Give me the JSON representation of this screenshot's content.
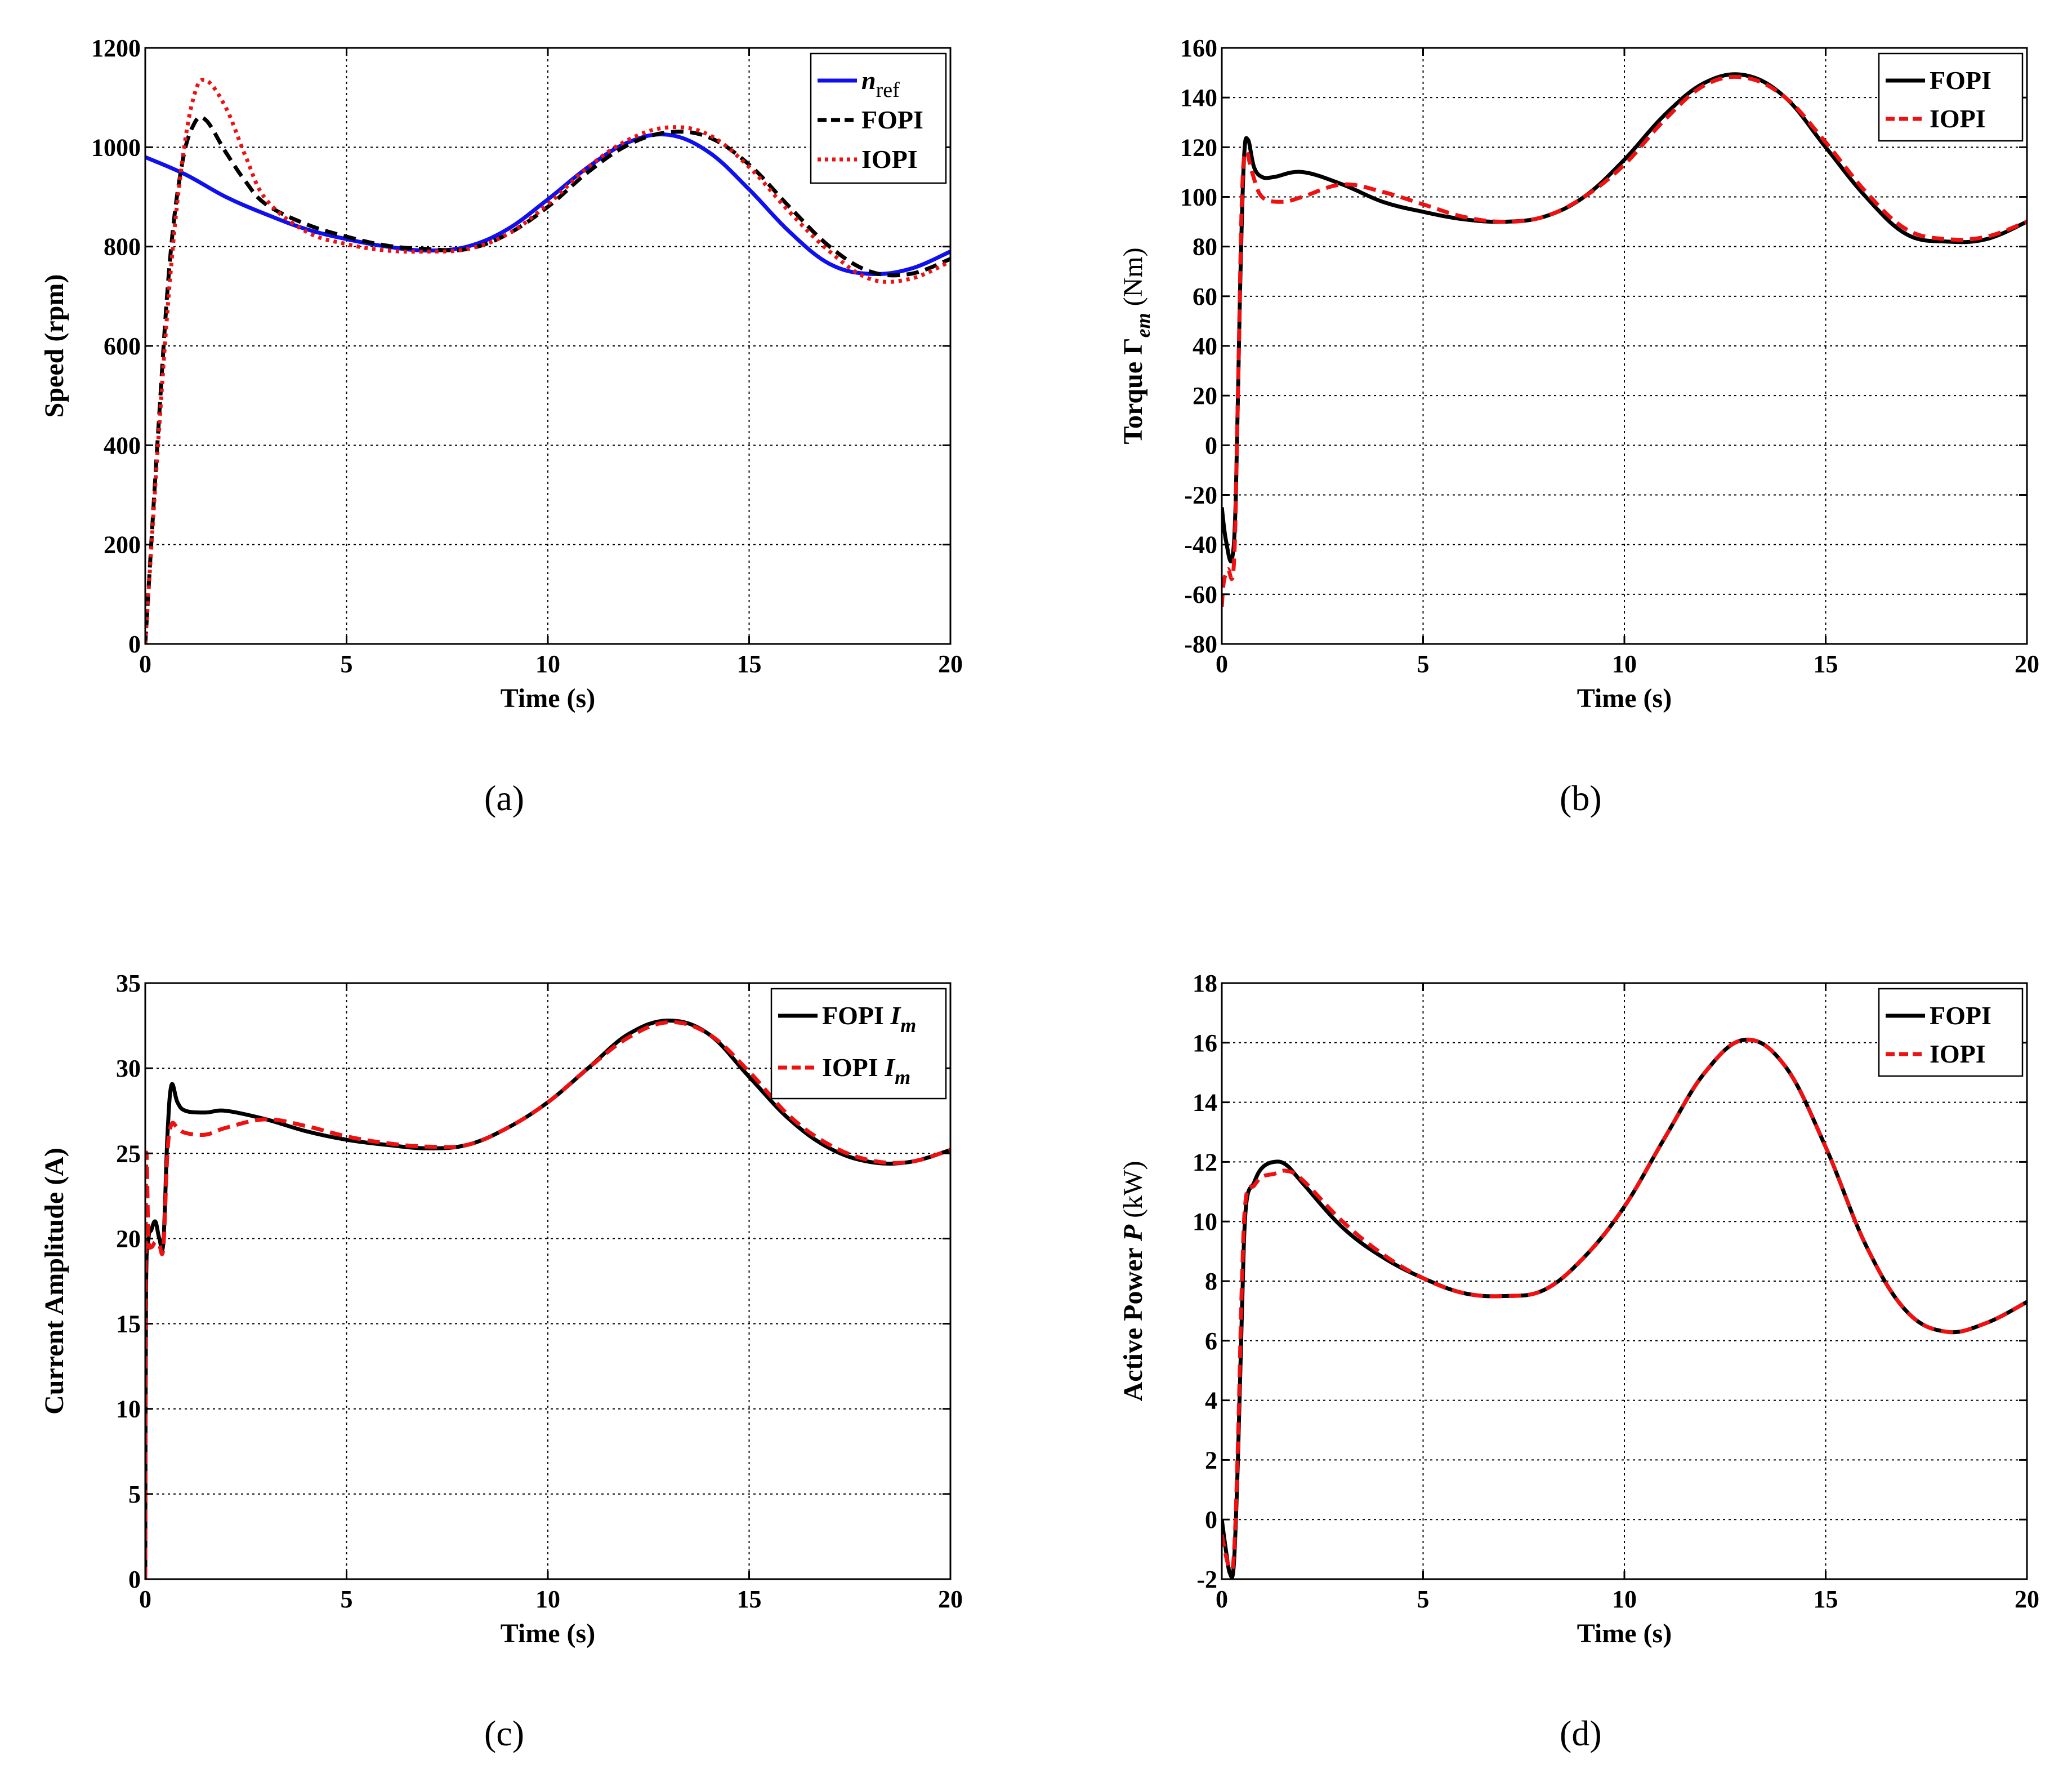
{
  "captions": {
    "a": "(a)",
    "b": "(b)",
    "c": "(c)",
    "d": "(d)"
  },
  "colors": {
    "nref": "#1010ee",
    "fopi": "#000000",
    "iopi": "#ee1111"
  },
  "chart_data": [
    {
      "id": "a",
      "type": "line",
      "title": "",
      "xlabel": "Time (s)",
      "ylabel": "Speed  (rpm)",
      "xlim": [
        0,
        20
      ],
      "ylim": [
        0,
        1200
      ],
      "xticks": [
        0,
        5,
        10,
        15,
        20
      ],
      "yticks": [
        0,
        200,
        400,
        600,
        800,
        1000,
        1200
      ],
      "grid": true,
      "legend_position": "top-right",
      "series": [
        {
          "name": "n_ref",
          "legend_main": "n",
          "legend_sub": "ref",
          "style": "solid",
          "color": "#1010ee",
          "x": [
            0,
            1,
            2,
            3,
            4,
            5,
            6,
            7,
            8,
            9,
            10,
            11,
            12,
            13,
            14,
            15,
            16,
            17,
            18,
            19,
            20
          ],
          "y": [
            980,
            945,
            900,
            865,
            835,
            815,
            800,
            792,
            800,
            835,
            895,
            960,
            1010,
            1025,
            990,
            915,
            830,
            765,
            745,
            755,
            790
          ]
        },
        {
          "name": "FOPI",
          "legend_main": "FOPI",
          "style": "dashed",
          "color": "#000000",
          "x": [
            0,
            0.3,
            0.6,
            0.9,
            1.2,
            1.5,
            2,
            2.5,
            3,
            4,
            5,
            6,
            7,
            8,
            9,
            10,
            11,
            12,
            13,
            14,
            15,
            16,
            17,
            18,
            19,
            20
          ],
          "y": [
            0,
            400,
            760,
            960,
            1045,
            1055,
            990,
            930,
            885,
            845,
            820,
            802,
            795,
            795,
            825,
            880,
            950,
            1005,
            1030,
            1020,
            965,
            880,
            800,
            750,
            745,
            775
          ]
        },
        {
          "name": "IOPI",
          "legend_main": "IOPI",
          "style": "dotted",
          "color": "#ee1111",
          "x": [
            0,
            0.3,
            0.6,
            0.9,
            1.2,
            1.5,
            2,
            2.5,
            3,
            4,
            5,
            6,
            7,
            8,
            9,
            10,
            11,
            12,
            13,
            14,
            15,
            16,
            17,
            18,
            19,
            20
          ],
          "y": [
            0,
            380,
            720,
            960,
            1100,
            1135,
            1080,
            980,
            895,
            830,
            805,
            792,
            790,
            795,
            825,
            885,
            960,
            1015,
            1040,
            1025,
            960,
            870,
            790,
            735,
            735,
            770
          ]
        }
      ]
    },
    {
      "id": "b",
      "type": "line",
      "title": "",
      "xlabel": "Time (s)",
      "ylabel_prefix": "Torque  Γ",
      "ylabel_sub": "em",
      "ylabel_suffix": " (Nm)",
      "xlim": [
        0,
        20
      ],
      "ylim": [
        -80,
        160
      ],
      "xticks": [
        0,
        5,
        10,
        15,
        20
      ],
      "yticks": [
        -80,
        -60,
        -40,
        -20,
        0,
        20,
        40,
        60,
        80,
        100,
        120,
        140,
        160
      ],
      "grid": true,
      "legend_position": "top-right",
      "series": [
        {
          "name": "FOPI",
          "legend_main": "FOPI",
          "style": "solid",
          "color": "#000000",
          "x": [
            0,
            0.1,
            0.25,
            0.35,
            0.45,
            0.55,
            0.65,
            0.8,
            1,
            1.3,
            2,
            3,
            4,
            5,
            6,
            7,
            8,
            9,
            10,
            11,
            12,
            13,
            14,
            15,
            16,
            17,
            18,
            19,
            20
          ],
          "y": [
            -25,
            -38,
            -46,
            -20,
            60,
            115,
            123,
            112,
            108,
            108,
            110,
            105,
            98,
            94,
            91,
            90,
            92,
            100,
            115,
            133,
            146,
            149,
            140,
            120,
            100,
            85,
            82,
            83,
            90
          ]
        },
        {
          "name": "IOPI",
          "legend_main": "IOPI",
          "style": "dashed",
          "color": "#ee1111",
          "x": [
            0,
            0.05,
            0.15,
            0.3,
            0.4,
            0.5,
            0.6,
            0.75,
            1,
            1.5,
            2,
            3,
            4,
            5,
            6,
            7,
            8,
            9,
            10,
            11,
            12,
            13,
            14,
            15,
            16,
            17,
            18,
            19,
            20
          ],
          "y": [
            -65,
            -55,
            -50,
            -48,
            20,
            100,
            118,
            110,
            100,
            98,
            100,
            105,
            102,
            97,
            92,
            90,
            92,
            100,
            113,
            131,
            145,
            148,
            140,
            122,
            102,
            87,
            83,
            84,
            90
          ]
        }
      ]
    },
    {
      "id": "c",
      "type": "line",
      "title": "",
      "xlabel": "Time (s)",
      "ylabel": "Current Amplitude (A)",
      "xlim": [
        0,
        20
      ],
      "ylim": [
        0,
        35
      ],
      "xticks": [
        0,
        5,
        10,
        15,
        20
      ],
      "yticks": [
        0,
        5,
        10,
        15,
        20,
        25,
        30,
        35
      ],
      "grid": true,
      "legend_position": "top-right",
      "series": [
        {
          "name": "FOPI Im",
          "legend_main": "FOPI ",
          "legend_italic": "I",
          "legend_sub": "m",
          "style": "solid",
          "color": "#000000",
          "x": [
            0,
            0.02,
            0.08,
            0.15,
            0.25,
            0.35,
            0.45,
            0.55,
            0.65,
            0.8,
            1,
            1.5,
            2,
            3,
            4,
            5,
            6,
            7,
            8,
            9,
            10,
            11,
            12,
            13,
            14,
            15,
            16,
            17,
            18,
            19,
            20
          ],
          "y": [
            0,
            17,
            20,
            20.5,
            21,
            20,
            19.8,
            26,
            29,
            28,
            27.5,
            27.4,
            27.5,
            27,
            26.3,
            25.8,
            25.5,
            25.3,
            25.5,
            26.5,
            28,
            30,
            32,
            32.8,
            32,
            29.5,
            27,
            25.3,
            24.5,
            24.5,
            25.2
          ]
        },
        {
          "name": "IOPI Im",
          "legend_main": "IOPI ",
          "legend_italic": "I",
          "legend_sub": "m",
          "style": "dashed",
          "color": "#ee1111",
          "x": [
            0,
            0.02,
            0.08,
            0.15,
            0.25,
            0.35,
            0.45,
            0.55,
            0.65,
            0.8,
            1,
            1.5,
            2,
            3,
            4,
            5,
            6,
            7,
            8,
            9,
            10,
            11,
            12,
            13,
            14,
            15,
            16,
            17,
            18,
            19,
            20
          ],
          "y": [
            0,
            24,
            20,
            19.5,
            19.8,
            19.6,
            19.5,
            25,
            26.7,
            26.5,
            26.2,
            26.1,
            26.5,
            27,
            26.6,
            26,
            25.6,
            25.4,
            25.5,
            26.5,
            28,
            30,
            31.8,
            32.7,
            32,
            29.8,
            27.2,
            25.5,
            24.6,
            24.5,
            25.2
          ]
        }
      ]
    },
    {
      "id": "d",
      "type": "line",
      "title": "",
      "xlabel": "Time (s)",
      "ylabel_prefix": "Active Power  ",
      "ylabel_italic": "P",
      "ylabel_suffix": "  (kW)",
      "xlim": [
        0,
        20
      ],
      "ylim": [
        -2,
        18
      ],
      "xticks": [
        0,
        5,
        10,
        15,
        20
      ],
      "yticks": [
        -2,
        0,
        2,
        4,
        6,
        8,
        10,
        12,
        14,
        16,
        18
      ],
      "grid": true,
      "legend_position": "top-right",
      "series": [
        {
          "name": "FOPI",
          "legend_main": "FOPI",
          "style": "solid",
          "color": "#000000",
          "x": [
            0,
            0.1,
            0.2,
            0.3,
            0.4,
            0.5,
            0.6,
            0.8,
            1,
            1.3,
            1.6,
            2,
            3,
            4,
            5,
            6,
            7,
            8,
            9,
            10,
            11,
            12,
            13,
            14,
            15,
            16,
            17,
            18,
            19,
            20
          ],
          "y": [
            0,
            -1,
            -1.8,
            -1.5,
            2,
            7,
            10.5,
            11.3,
            11.8,
            12,
            11.9,
            11.3,
            9.8,
            8.8,
            8.1,
            7.6,
            7.5,
            7.7,
            8.8,
            10.5,
            12.8,
            15,
            16.1,
            15.2,
            12.5,
            9.2,
            7,
            6.3,
            6.6,
            7.3
          ]
        },
        {
          "name": "IOPI",
          "legend_main": "IOPI",
          "style": "dashed",
          "color": "#ee1111",
          "x": [
            0,
            0.1,
            0.2,
            0.3,
            0.4,
            0.5,
            0.6,
            0.8,
            1,
            1.3,
            1.6,
            2,
            3,
            4,
            5,
            6,
            7,
            8,
            9,
            10,
            11,
            12,
            13,
            14,
            15,
            16,
            17,
            18,
            19,
            20
          ],
          "y": [
            -0.5,
            -1.2,
            -1.6,
            -1.2,
            2.5,
            8,
            10.8,
            11.2,
            11.5,
            11.6,
            11.7,
            11.4,
            10,
            8.9,
            8.1,
            7.6,
            7.5,
            7.7,
            8.8,
            10.5,
            12.8,
            15,
            16.1,
            15.2,
            12.5,
            9.2,
            7,
            6.3,
            6.6,
            7.3
          ]
        }
      ]
    }
  ]
}
